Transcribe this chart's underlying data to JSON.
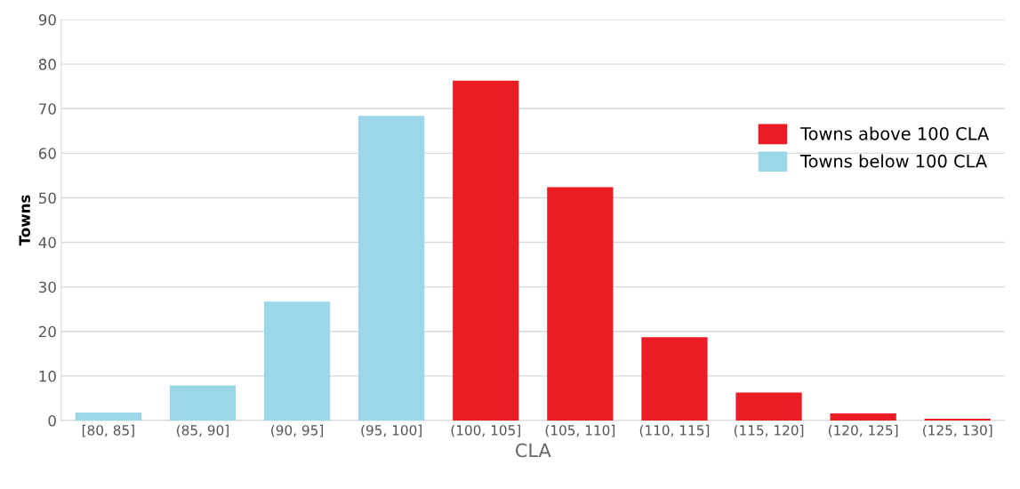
{
  "chart_data": {
    "type": "bar",
    "xlabel": "CLA",
    "ylabel": "Towns",
    "categories": [
      "[80, 85]",
      "(85, 90]",
      "(90, 95]",
      "(95, 100]",
      "(100, 105]",
      "(105, 110]",
      "(110, 115]",
      "(115, 120]",
      "(120, 125]",
      "(125, 130]"
    ],
    "series": [
      {
        "name": "Towns above 100 CLA",
        "color": "#ec1c24",
        "values": [
          null,
          null,
          null,
          null,
          76.3,
          52.4,
          18.7,
          6.3,
          1.6,
          0.4
        ]
      },
      {
        "name": "Towns below 100 CLA",
        "color": "#9bd7e8",
        "values": [
          1.8,
          7.9,
          26.7,
          68.4,
          null,
          null,
          null,
          null,
          null,
          null
        ]
      }
    ],
    "ylim": [
      0,
      90
    ],
    "yticks": [
      0,
      10,
      20,
      30,
      40,
      50,
      60,
      70,
      80,
      90
    ],
    "grid": "y",
    "legend": "right"
  }
}
